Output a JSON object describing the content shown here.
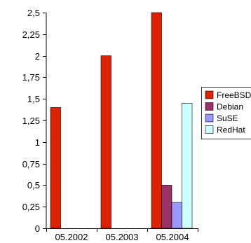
{
  "chart_data": {
    "type": "bar",
    "title": "",
    "xlabel": "",
    "ylabel": "",
    "categories": [
      "05.2002",
      "05.2003",
      "05.2004"
    ],
    "ylim": [
      0,
      2.5
    ],
    "yticks": [
      "0",
      "0,25",
      "0,5",
      "0,75",
      "1",
      "1,25",
      "1,5",
      "1,75",
      "2",
      "2,25",
      "2,5"
    ],
    "ytick_values": [
      0,
      0.25,
      0.5,
      0.75,
      1,
      1.25,
      1.5,
      1.75,
      2,
      2.25,
      2.5
    ],
    "grid": false,
    "legend_position": "right",
    "series": [
      {
        "name": "FreeBSD",
        "color": "#dd2200",
        "values": [
          1.4,
          2.0,
          2.5
        ]
      },
      {
        "name": "Debian",
        "color": "#993366",
        "values": [
          null,
          null,
          0.5
        ]
      },
      {
        "name": "SuSE",
        "color": "#9999ff",
        "values": [
          null,
          null,
          0.3
        ]
      },
      {
        "name": "RedHat",
        "color": "#ccffff",
        "values": [
          null,
          null,
          1.45
        ]
      }
    ]
  }
}
